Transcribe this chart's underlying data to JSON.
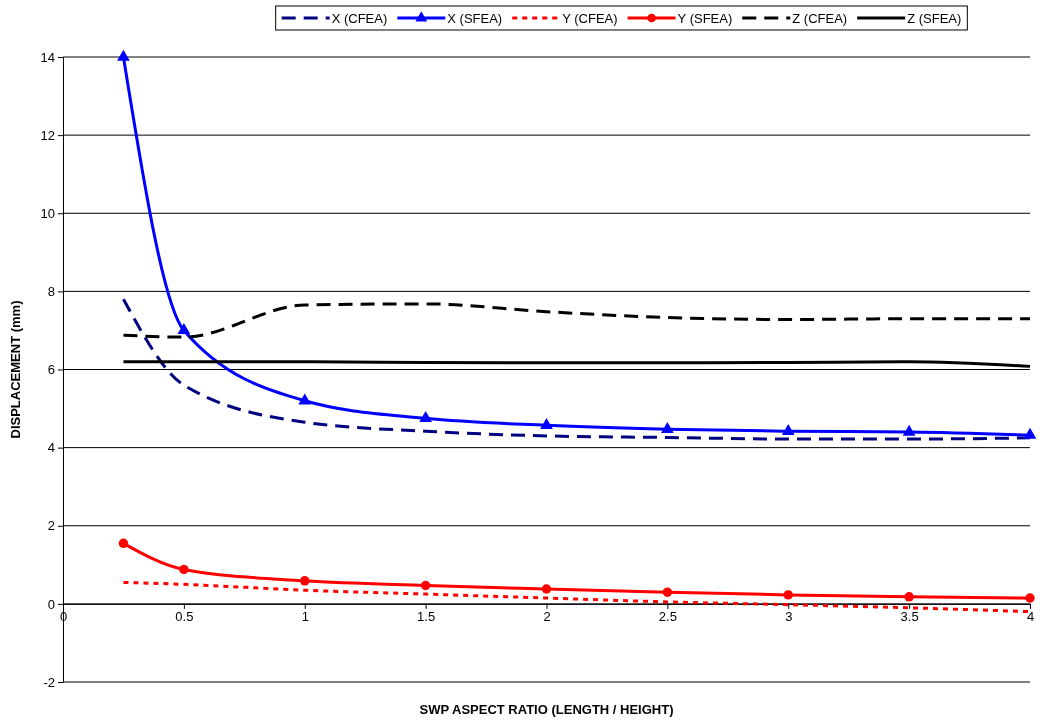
{
  "chart_data": {
    "type": "line",
    "xlabel": "SWP ASPECT RATIO (LENGTH / HEIGHT)",
    "ylabel": "DISPLACEMENT (mm)",
    "x": [
      0.25,
      0.5,
      1,
      1.5,
      2,
      2.5,
      3,
      3.5,
      4
    ],
    "xlim": [
      0,
      4
    ],
    "xticks": [
      0,
      0.5,
      1,
      1.5,
      2,
      2.5,
      3,
      3.5,
      4
    ],
    "ylim": [
      -2,
      14
    ],
    "yticks": [
      -2,
      0,
      2,
      4,
      6,
      8,
      10,
      12,
      14
    ],
    "grid": "y",
    "legend": "top",
    "series": [
      {
        "name": "X (CFEA)",
        "color": "#000080",
        "line_style": "dashed",
        "marker": "none",
        "values": [
          7.8,
          5.6,
          4.65,
          4.42,
          4.3,
          4.26,
          4.22,
          4.22,
          4.25
        ]
      },
      {
        "name": "X  (SFEA)",
        "color": "#0000ff",
        "line_style": "solid",
        "marker": "triangle",
        "values": [
          14,
          7.0,
          5.2,
          4.75,
          4.57,
          4.47,
          4.42,
          4.4,
          4.32
        ]
      },
      {
        "name": "Y (CFEA)",
        "color": "#ff0000",
        "line_style": "dotted",
        "marker": "none",
        "values": [
          0.55,
          0.5,
          0.35,
          0.25,
          0.15,
          0.05,
          -0.02,
          -0.1,
          -0.2
        ]
      },
      {
        "name": "Y (SFEA)",
        "color": "#ff0000",
        "line_style": "solid",
        "marker": "circle",
        "values": [
          1.55,
          0.88,
          0.59,
          0.47,
          0.38,
          0.3,
          0.23,
          0.18,
          0.15
        ]
      },
      {
        "name": "Z (CFEA)",
        "color": "#000000",
        "line_style": "dashed",
        "marker": "none",
        "values": [
          6.88,
          6.83,
          7.65,
          7.68,
          7.48,
          7.33,
          7.28,
          7.3,
          7.3
        ]
      },
      {
        "name": "Z (SFEA)",
        "color": "#000000",
        "line_style": "solid",
        "marker": "none",
        "values": [
          6.2,
          6.2,
          6.2,
          6.18,
          6.17,
          6.17,
          6.18,
          6.2,
          6.08
        ]
      }
    ]
  }
}
